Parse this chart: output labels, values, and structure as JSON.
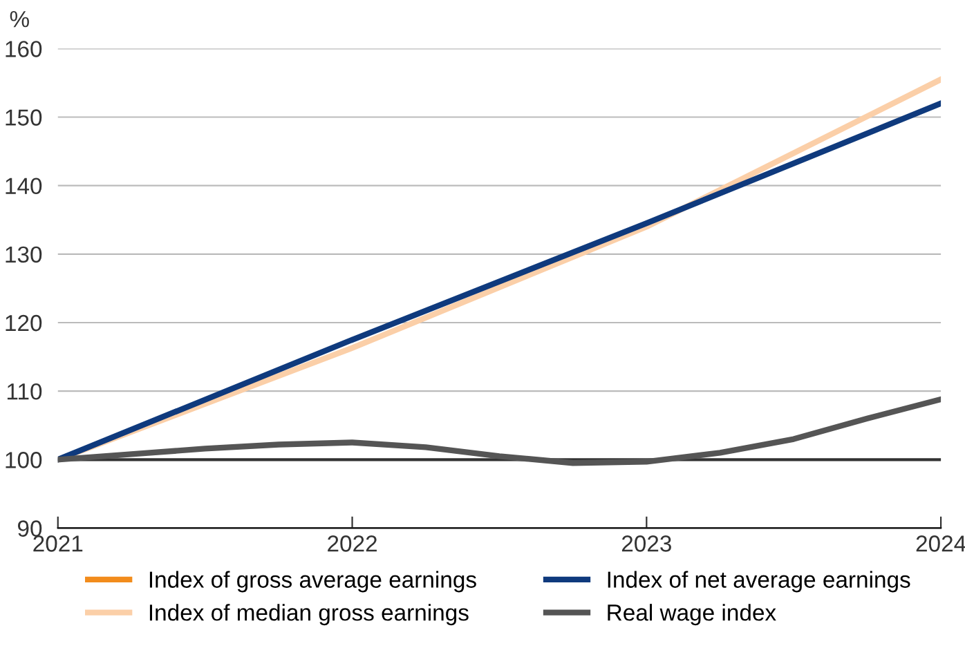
{
  "chart_data": {
    "type": "line",
    "ylabel": "%",
    "x": [
      2021,
      2022,
      2023,
      2024
    ],
    "series": [
      {
        "name": "Index of gross average earnings",
        "color": "#f28c1c",
        "values": [
          null,
          null,
          null,
          null
        ]
      },
      {
        "name": "Index of median gross earnings",
        "color": "#fbcfa8",
        "values": [
          100,
          116.3,
          134,
          155.5
        ]
      },
      {
        "name": "Index of net average earnings",
        "color": "#0f3a7d",
        "values": [
          100,
          117.5,
          134.5,
          152
        ]
      },
      {
        "name": "Real wage index",
        "color": "#555555",
        "x": [
          2021,
          2021.25,
          2021.5,
          2021.75,
          2022,
          2022.25,
          2022.5,
          2022.75,
          2023,
          2023.25,
          2023.5,
          2023.75,
          2024
        ],
        "values": [
          100,
          100.8,
          101.6,
          102.2,
          102.5,
          101.8,
          100.5,
          99.5,
          99.7,
          101,
          103,
          106,
          108.8
        ]
      }
    ],
    "xlim": [
      2021,
      2024
    ],
    "xticks": [
      2021,
      2022,
      2023,
      2024
    ],
    "ylim": [
      90,
      160
    ],
    "yticks": [
      90,
      100,
      110,
      120,
      130,
      140,
      150,
      160
    ],
    "ref_lines": [
      {
        "axis": "y",
        "value": 100,
        "color": "#333333"
      }
    ],
    "grid": "y",
    "legend": "bottom",
    "marker": "none",
    "line_style": "solid"
  }
}
